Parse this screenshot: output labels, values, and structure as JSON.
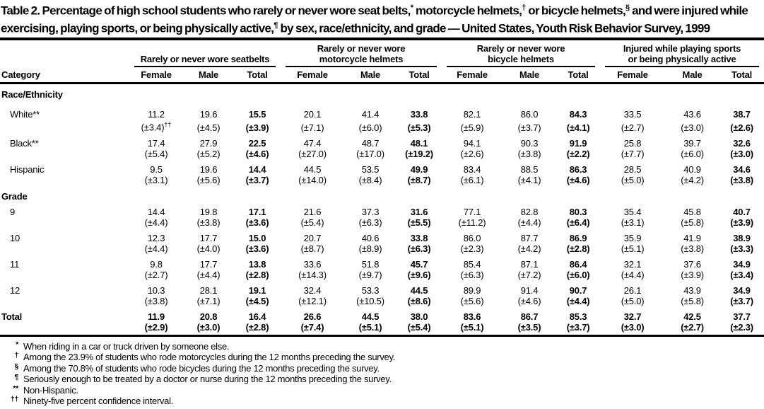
{
  "title_segments": [
    {
      "text": "Table 2. Percentage of high school students who rarely or never wore seat belts,",
      "sup": false
    },
    {
      "text": "*",
      "sup": true
    },
    {
      "text": " motorcycle helmets,",
      "sup": false
    },
    {
      "text": "†",
      "sup": true
    },
    {
      "text": " or bicycle helmets,",
      "sup": false
    },
    {
      "text": "§",
      "sup": true
    },
    {
      "text": " and were injured while exercising, playing sports, or being physically active,",
      "sup": false
    },
    {
      "text": "¶",
      "sup": true
    },
    {
      "text": " by sex, race/ethnicity, and grade — United States, Youth Risk Behavior Survey, 1999",
      "sup": false
    }
  ],
  "table": {
    "category_label": "Category",
    "groups": [
      "Rarely or never wore seatbelts",
      "Rarely or never wore\nmotorcycle helmets",
      "Rarely or never wore\nbicycle helmets",
      "Injured while playing sports\nor being physically active"
    ],
    "subcols": [
      "Female",
      "Male",
      "Total"
    ],
    "sections": [
      {
        "label": "Race/Ethnicity",
        "rows": [
          {
            "label": "White**",
            "values": [
              "11.2",
              "19.6",
              "15.5",
              "20.1",
              "41.4",
              "33.8",
              "82.1",
              "86.0",
              "84.3",
              "33.5",
              "43.6",
              "38.7"
            ],
            "cis": [
              "(±3.4)††",
              "(±4.5)",
              "(±3.9)",
              "(±7.1)",
              "(±6.0)",
              "(±5.3)",
              "(±5.9)",
              "(±3.7)",
              "(±4.1)",
              "(±2.7)",
              "(±3.0)",
              "(±2.6)"
            ]
          },
          {
            "label": "Black**",
            "values": [
              "17.4",
              "27.9",
              "22.5",
              "47.4",
              "48.7",
              "48.1",
              "94.1",
              "90.3",
              "91.9",
              "25.8",
              "39.7",
              "32.6"
            ],
            "cis": [
              "(±5.4)",
              "(±5.2)",
              "(±4.6)",
              "(±27.0)",
              "(±17.0)",
              "(±19.2)",
              "(±2.6)",
              "(±3.8)",
              "(±2.2)",
              "(±7.7)",
              "(±6.0)",
              "(±3.0)"
            ]
          },
          {
            "label": "Hispanic",
            "values": [
              "9.5",
              "19.6",
              "14.4",
              "44.5",
              "53.5",
              "49.9",
              "83.4",
              "88.5",
              "86.3",
              "28.5",
              "40.9",
              "34.6"
            ],
            "cis": [
              "(±3.1)",
              "(±5.6)",
              "(±3.7)",
              "(±14.0)",
              "(±8.4)",
              "(±8.7)",
              "(±6.1)",
              "(±4.1)",
              "(±4.6)",
              "(±5.0)",
              "(±4.2)",
              "(±3.8)"
            ]
          }
        ]
      },
      {
        "label": "Grade",
        "rows": [
          {
            "label": "9",
            "values": [
              "14.4",
              "19.8",
              "17.1",
              "21.6",
              "37.3",
              "31.6",
              "77.1",
              "82.8",
              "80.3",
              "35.4",
              "45.8",
              "40.7"
            ],
            "cis": [
              "(±4.4)",
              "(±3.8)",
              "(±3.6)",
              "(±5.4)",
              "(±6.3)",
              "(±5.5)",
              "(±11.2)",
              "(±4.4)",
              "(±6.4)",
              "(±3.1)",
              "(±5.8)",
              "(±3.9)"
            ]
          },
          {
            "label": "10",
            "values": [
              "12.3",
              "17.7",
              "15.0",
              "20.7",
              "40.6",
              "33.8",
              "86.0",
              "87.7",
              "86.9",
              "35.9",
              "41.9",
              "38.9"
            ],
            "cis": [
              "(±4.4)",
              "(±4.0)",
              "(±3.6)",
              "(±8.7)",
              "(±8.9)",
              "(±6.3)",
              "(±2.3)",
              "(±4.2)",
              "(±2.8)",
              "(±5.1)",
              "(±3.8)",
              "(±3.3)"
            ]
          },
          {
            "label": "11",
            "values": [
              "9.8",
              "17.7",
              "13.8",
              "33.6",
              "51.8",
              "45.7",
              "85.4",
              "87.1",
              "86.4",
              "32.1",
              "37.6",
              "34.9"
            ],
            "cis": [
              "(±2.7)",
              "(±4.4)",
              "(±2.8)",
              "(±14.3)",
              "(±9.7)",
              "(±9.6)",
              "(±6.3)",
              "(±7.2)",
              "(±6.0)",
              "(±4.4)",
              "(±3.9)",
              "(±3.4)"
            ]
          },
          {
            "label": "12",
            "values": [
              "10.3",
              "28.1",
              "19.1",
              "32.4",
              "53.3",
              "44.5",
              "89.9",
              "91.4",
              "90.7",
              "26.1",
              "43.9",
              "34.9"
            ],
            "cis": [
              "(±3.8)",
              "(±7.1)",
              "(±4.5)",
              "(±12.1)",
              "(±10.5)",
              "(±8.6)",
              "(±5.6)",
              "(±4.6)",
              "(±4.4)",
              "(±5.0)",
              "(±5.8)",
              "(±3.7)"
            ]
          }
        ]
      }
    ],
    "total_row": {
      "label": "Total",
      "values": [
        "11.9",
        "20.8",
        "16.4",
        "26.6",
        "44.5",
        "38.0",
        "83.6",
        "86.7",
        "85.3",
        "32.7",
        "42.5",
        "37.7"
      ],
      "cis": [
        "(±2.9)",
        "(±3.0)",
        "(±2.8)",
        "(±7.4)",
        "(±5.1)",
        "(±5.4)",
        "(±5.1)",
        "(±3.5)",
        "(±3.7)",
        "(±3.0)",
        "(±2.7)",
        "(±2.3)"
      ]
    }
  },
  "footnotes": [
    {
      "marker": "*",
      "text": "When riding in a car or truck driven by someone else."
    },
    {
      "marker": "†",
      "text": "Among the 23.9% of students who rode motorcycles during the 12 months preceding the survey."
    },
    {
      "marker": "§",
      "text": "Among the 70.8% of students who rode bicycles during the 12 months preceding the survey."
    },
    {
      "marker": "¶",
      "text": "Seriously enough to be treated by a doctor or nurse during the 12 months preceding the survey."
    },
    {
      "marker": "**",
      "text": "Non-Hispanic."
    },
    {
      "marker": "††",
      "text": "Ninety-five percent confidence interval."
    }
  ]
}
